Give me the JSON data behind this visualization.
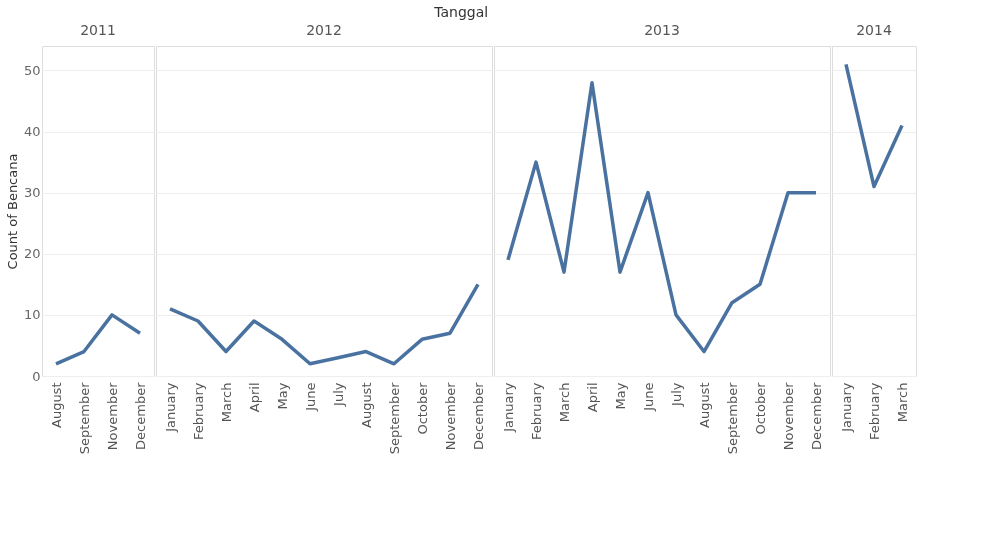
{
  "chart_data": [
    {
      "type": "line",
      "title": "2011",
      "annotations": [
        "Tanggal"
      ],
      "ylabel": "Count of Bencana",
      "categories": [
        "August",
        "September",
        "November",
        "December"
      ],
      "series": [
        {
          "color": "#4a72a0",
          "values": [
            2,
            4,
            10,
            7
          ]
        }
      ],
      "ylim": [
        0,
        54
      ],
      "yticks": [
        0,
        10,
        20,
        30,
        40,
        50
      ],
      "grid": "y"
    },
    {
      "type": "line",
      "title": "2012",
      "categories": [
        "January",
        "February",
        "March",
        "April",
        "May",
        "June",
        "July",
        "August",
        "September",
        "October",
        "November",
        "December"
      ],
      "series": [
        {
          "color": "#4a72a0",
          "values": [
            11,
            9,
            4,
            9,
            6,
            2,
            3,
            4,
            2,
            6,
            7,
            15
          ]
        }
      ],
      "ylim": [
        0,
        54
      ],
      "yticks": [
        0,
        10,
        20,
        30,
        40,
        50
      ],
      "grid": "y",
      "tick_labels": "x"
    },
    {
      "type": "line",
      "title": "2013",
      "categories": [
        "January",
        "February",
        "March",
        "April",
        "May",
        "June",
        "July",
        "August",
        "September",
        "October",
        "November",
        "December"
      ],
      "series": [
        {
          "color": "#4a72a0",
          "values": [
            19,
            35,
            17,
            48,
            17,
            30,
            10,
            4,
            12,
            15,
            30,
            30
          ]
        }
      ],
      "ylim": [
        0,
        54
      ],
      "yticks": [
        0,
        10,
        20,
        30,
        40,
        50
      ],
      "grid": "y",
      "tick_labels": "x"
    },
    {
      "type": "line",
      "title": "2014",
      "categories": [
        "January",
        "February",
        "March"
      ],
      "series": [
        {
          "color": "#4a72a0",
          "values": [
            51,
            31,
            41
          ]
        }
      ],
      "ylim": [
        0,
        54
      ],
      "yticks": [
        0,
        10,
        20,
        30,
        40,
        50
      ],
      "grid": "y",
      "tick_labels": "x"
    }
  ]
}
